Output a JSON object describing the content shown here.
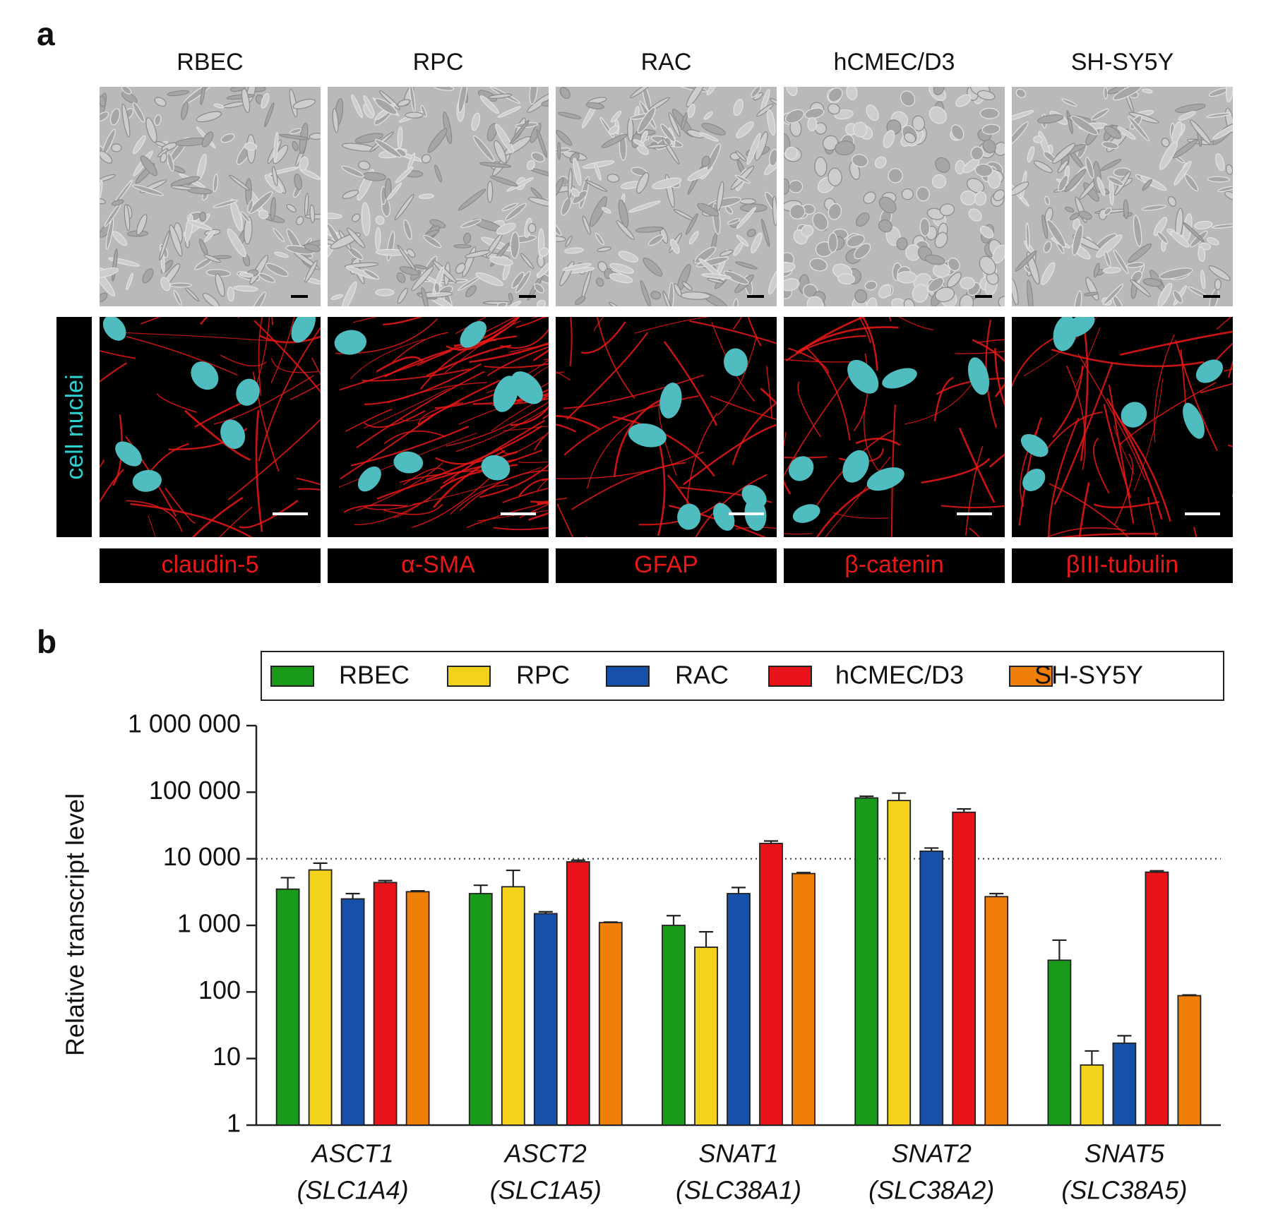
{
  "panel_a": {
    "label": "a",
    "nuclear_stain": "cell nuclei",
    "columns": [
      {
        "cell_line": "RBEC",
        "marker": "claudin-5"
      },
      {
        "cell_line": "RPC",
        "marker": "α-SMA"
      },
      {
        "cell_line": "RAC",
        "marker": "GFAP"
      },
      {
        "cell_line": "hCMEC/D3",
        "marker": "β-catenin"
      },
      {
        "cell_line": "SH-SY5Y",
        "marker": "βIII-tubulin"
      }
    ]
  },
  "chart_data": {
    "type": "bar",
    "panel_label": "b",
    "y_label": "Relative transcript level",
    "categories": [
      "ASCT1",
      "ASCT2",
      "SNAT1",
      "SNAT2",
      "SNAT5"
    ],
    "category_sublabels": [
      "(SLC1A4)",
      "(SLC1A5)",
      "(SLC38A1)",
      "(SLC38A2)",
      "(SLC38A5)"
    ],
    "series": [
      {
        "name": "RBEC",
        "color": "#1a9a1a",
        "values": [
          3500,
          3000,
          1000,
          82000,
          300
        ],
        "errors": [
          1700,
          1000,
          400,
          5000,
          300
        ]
      },
      {
        "name": "RPC",
        "color": "#f2d21b",
        "values": [
          6800,
          3800,
          470,
          75000,
          8
        ],
        "errors": [
          1800,
          2900,
          330,
          22000,
          5
        ]
      },
      {
        "name": "RAC",
        "color": "#1650a8",
        "values": [
          2500,
          1500,
          3000,
          13000,
          17
        ],
        "errors": [
          500,
          100,
          700,
          1500,
          5
        ]
      },
      {
        "name": "hCMEC/D3",
        "color": "#e8141a",
        "values": [
          4400,
          9000,
          17000,
          50000,
          6300
        ],
        "errors": [
          300,
          500,
          1500,
          6000,
          300
        ]
      },
      {
        "name": "SH-SY5Y",
        "color": "#f07f0a",
        "values": [
          3200,
          1100,
          6000,
          2700,
          88
        ],
        "errors": [
          100,
          20,
          200,
          300,
          2
        ]
      }
    ],
    "log_scale": true,
    "ylim": [
      1,
      1000000
    ],
    "yticks": [
      1,
      10,
      100,
      {
        "value": 1000,
        "label": "1 000"
      },
      {
        "value": 10000,
        "label": "10 000"
      },
      {
        "value": 100000,
        "label": "100 000"
      },
      {
        "value": 1000000,
        "label": "1 000 000"
      }
    ],
    "reference_line": 10000,
    "legend": "top"
  }
}
